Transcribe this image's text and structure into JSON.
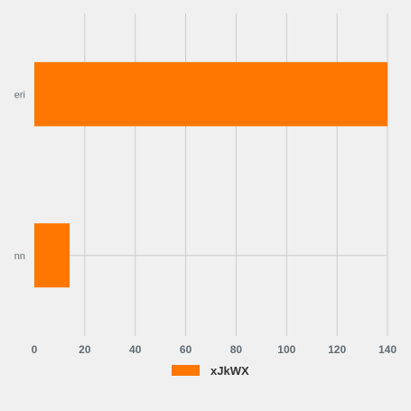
{
  "chart_data": {
    "type": "bar",
    "orientation": "horizontal",
    "categories": [
      "eri",
      "nn"
    ],
    "series": [
      {
        "name": "xJkWX",
        "values": [
          140,
          14
        ],
        "color": "#ff7700"
      }
    ],
    "xlim": [
      0,
      140
    ],
    "xticks": [
      0,
      20,
      40,
      60,
      80,
      100,
      120,
      140
    ],
    "grid": true,
    "legend_position": "bottom-center"
  }
}
